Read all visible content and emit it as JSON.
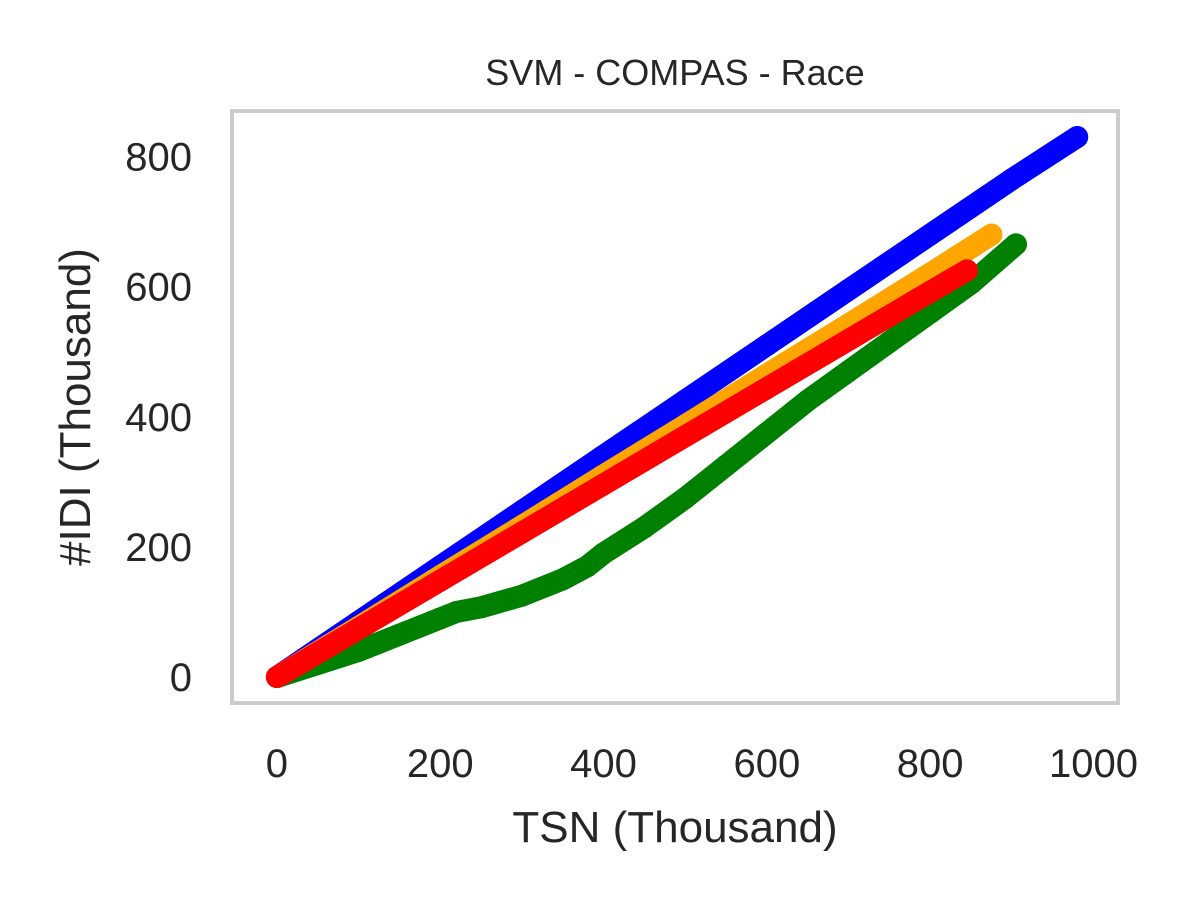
{
  "chart_data": {
    "type": "scatter",
    "title": "SVM - COMPAS - Race",
    "xlabel": "TSN (Thousand)",
    "ylabel": "#IDI (Thousand)",
    "xlim": [
      -55,
      1030
    ],
    "ylim": [
      -40,
      870
    ],
    "xticks": [
      "0",
      "200",
      "400",
      "600",
      "800",
      "1000"
    ],
    "yticks": [
      "0",
      "200",
      "400",
      "600",
      "800"
    ],
    "xtick_values": [
      0,
      200,
      400,
      600,
      800,
      1000
    ],
    "ytick_values": [
      0,
      200,
      400,
      600,
      800
    ],
    "grid": false,
    "series": [
      {
        "color": "#0000ff",
        "x": [
          0,
          100,
          200,
          300,
          400,
          500,
          600,
          700,
          800,
          900,
          980
        ],
        "y": [
          0,
          85,
          170,
          255,
          340,
          425,
          510,
          595,
          680,
          765,
          830
        ]
      },
      {
        "color": "#ffa500",
        "x": [
          0,
          100,
          200,
          300,
          400,
          500,
          600,
          700,
          800,
          875
        ],
        "y": [
          0,
          77,
          155,
          232,
          310,
          387,
          465,
          542,
          620,
          680
        ]
      },
      {
        "color": "#008000",
        "x": [
          0,
          50,
          100,
          150,
          200,
          220,
          250,
          300,
          350,
          380,
          400,
          450,
          500,
          550,
          600,
          650,
          700,
          750,
          800,
          850,
          905
        ],
        "y": [
          0,
          20,
          40,
          65,
          90,
          100,
          107,
          125,
          150,
          170,
          190,
          230,
          275,
          325,
          375,
          425,
          470,
          515,
          560,
          605,
          665
        ]
      },
      {
        "color": "#ff0000",
        "x": [
          0,
          100,
          200,
          300,
          400,
          500,
          600,
          700,
          800,
          845
        ],
        "y": [
          0,
          74,
          148,
          222,
          296,
          370,
          444,
          518,
          592,
          625
        ]
      }
    ]
  }
}
